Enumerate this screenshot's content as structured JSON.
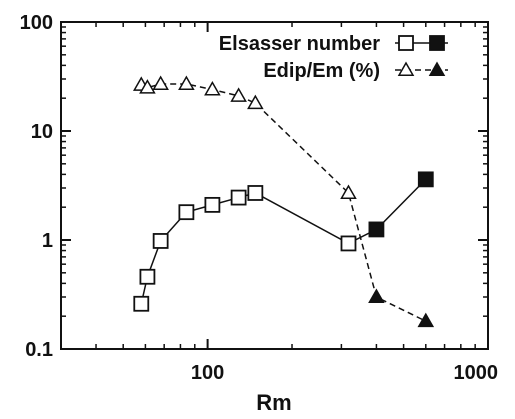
{
  "chart_data": {
    "type": "scatter",
    "xlabel": "Rm",
    "ylabel": "",
    "xscale": "log",
    "yscale": "log",
    "xlim": [
      30,
      1000
    ],
    "ylim": [
      0.1,
      100
    ],
    "xticks": [
      100,
      1000
    ],
    "xtick_labels": [
      "100",
      "1000"
    ],
    "yticks": [
      0.1,
      1,
      10,
      100
    ],
    "ytick_labels": [
      "0.1",
      "1",
      "10",
      "100"
    ],
    "grid": false,
    "legend_position": "top-right",
    "series": [
      {
        "name": "Elsasser number",
        "line_style": "solid",
        "marker": "square",
        "x": [
          58,
          61,
          68,
          84,
          104,
          129,
          148,
          318,
          400,
          600
        ],
        "y": [
          0.26,
          0.46,
          0.98,
          1.8,
          2.1,
          2.45,
          2.7,
          0.93,
          1.25,
          3.6
        ],
        "filled": [
          false,
          false,
          false,
          false,
          false,
          false,
          false,
          false,
          true,
          true
        ]
      },
      {
        "name": "Edip/Em (%)",
        "line_style": "dashed",
        "marker": "triangle",
        "x": [
          58,
          61,
          68,
          84,
          104,
          129,
          148,
          318,
          400,
          600
        ],
        "y": [
          26.5,
          25,
          27,
          27,
          24,
          21,
          18,
          2.7,
          0.3,
          0.18
        ],
        "filled": [
          false,
          false,
          false,
          false,
          false,
          false,
          false,
          false,
          true,
          true
        ]
      }
    ]
  }
}
